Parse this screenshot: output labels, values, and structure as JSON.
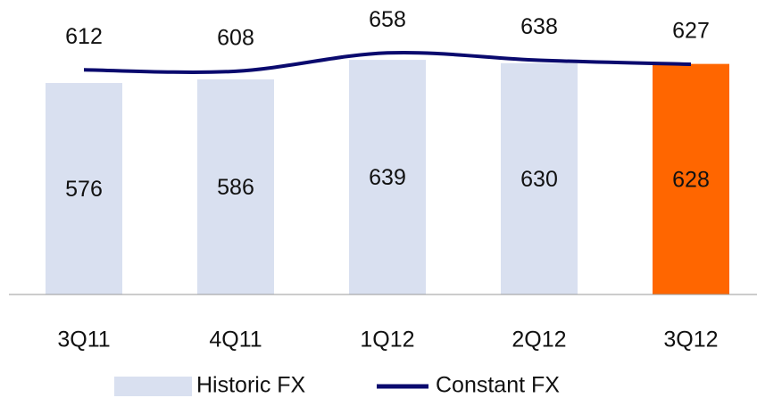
{
  "chart_data": {
    "type": "bar-line",
    "categories": [
      "3Q11",
      "4Q11",
      "1Q12",
      "2Q12",
      "3Q12"
    ],
    "series": [
      {
        "name": "Historic FX",
        "type": "bar",
        "color": "#d9e0f0",
        "colors": [
          "#d9e0f0",
          "#d9e0f0",
          "#d9e0f0",
          "#d9e0f0",
          "#ff6600"
        ],
        "values": [
          576,
          586,
          639,
          630,
          628
        ]
      },
      {
        "name": "Constant FX",
        "type": "line",
        "color": "#0a0a6e",
        "values": [
          612,
          608,
          658,
          638,
          627
        ]
      }
    ],
    "ylim": [
      0,
      700
    ]
  }
}
